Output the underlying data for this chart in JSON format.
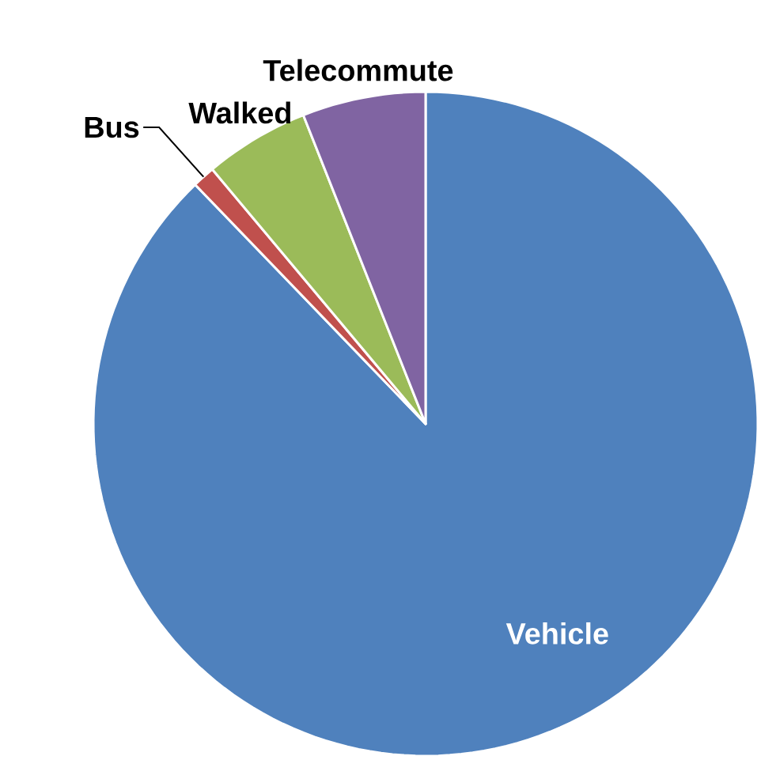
{
  "chart_data": {
    "type": "pie",
    "categories": [
      "Vehicle",
      "Bus",
      "Walked",
      "Telecommute"
    ],
    "values": [
      87.8,
      1.1,
      5.1,
      6.0
    ],
    "colors": [
      "#4f81bd",
      "#c0504d",
      "#9bbb59",
      "#8064a2"
    ]
  }
}
